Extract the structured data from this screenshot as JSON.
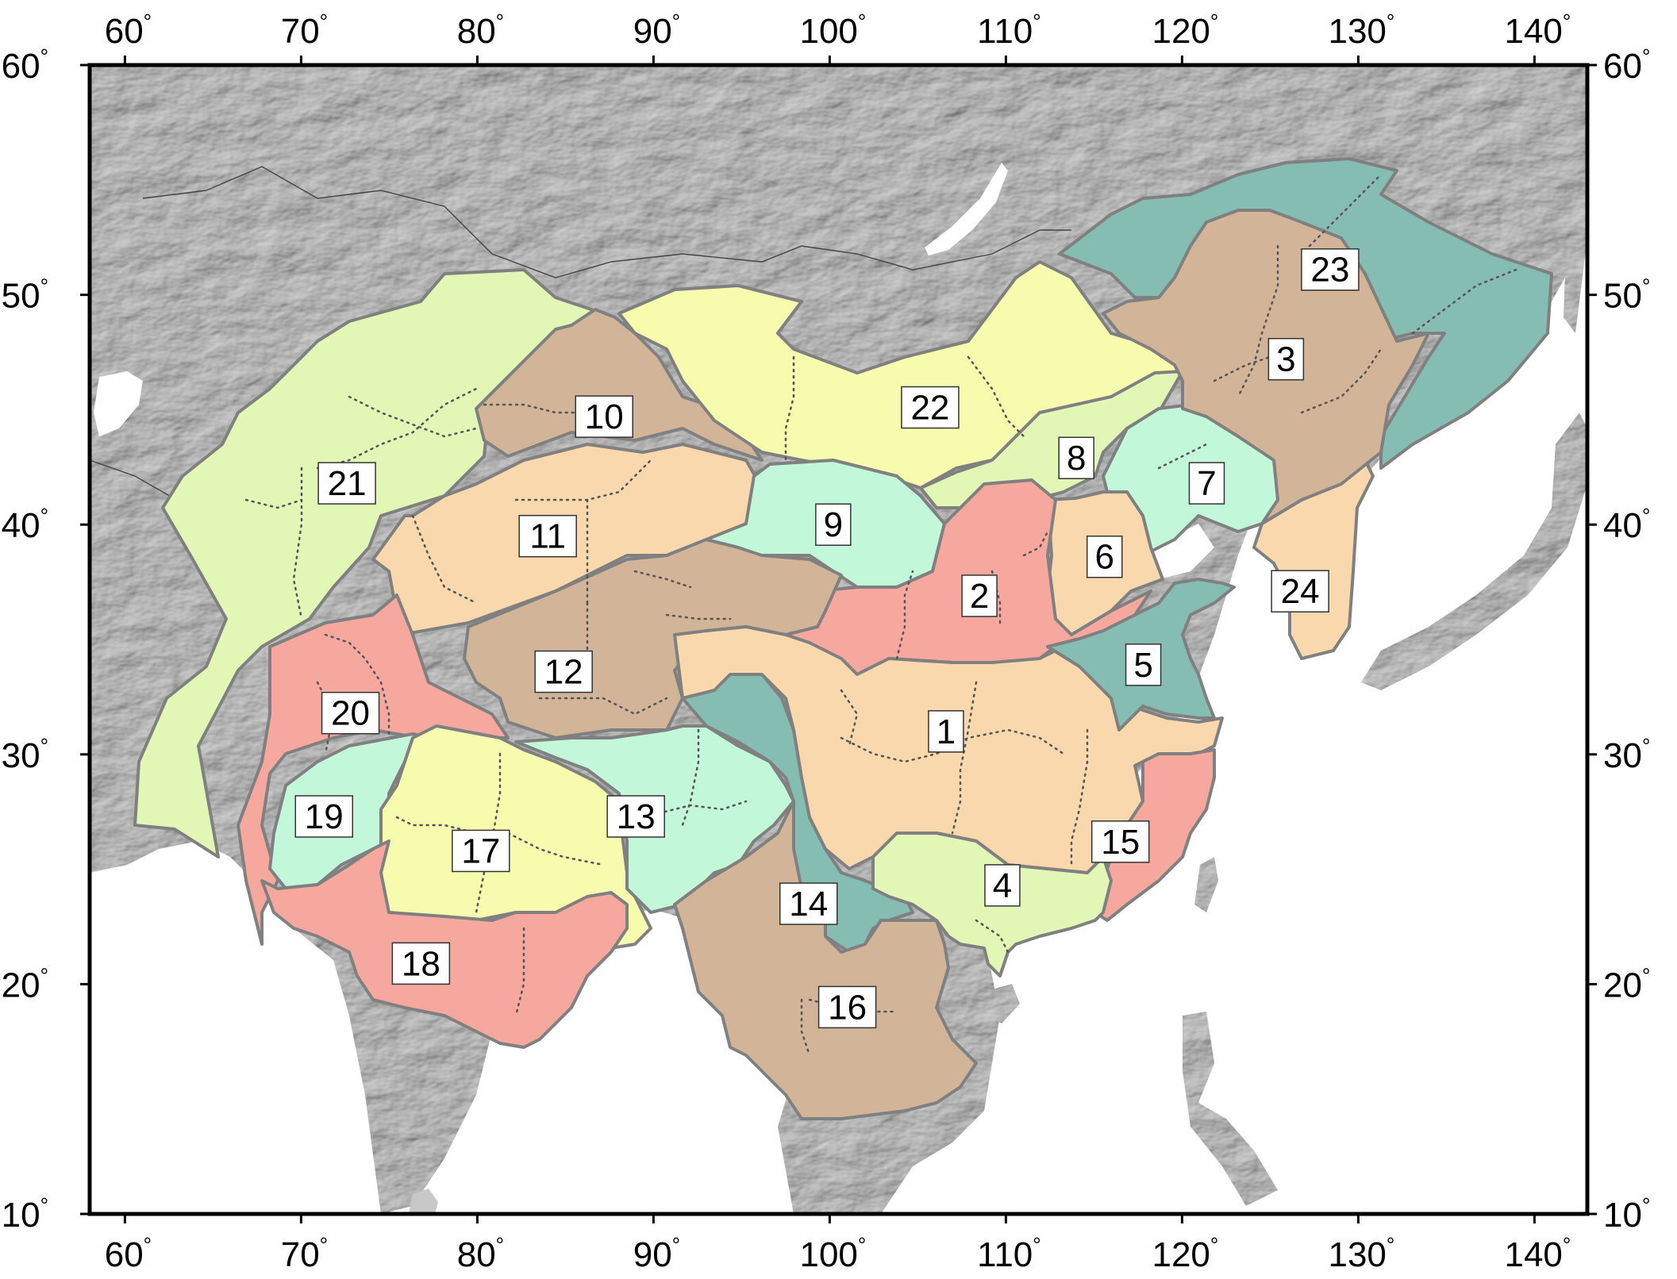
{
  "map": {
    "lon_range": [
      58,
      143
    ],
    "lat_range": [
      10,
      60
    ],
    "lon_ticks": [
      {
        "value": 60,
        "label": "60"
      },
      {
        "value": 70,
        "label": "70"
      },
      {
        "value": 80,
        "label": "80"
      },
      {
        "value": 90,
        "label": "90"
      },
      {
        "value": 100,
        "label": "100"
      },
      {
        "value": 110,
        "label": "110"
      },
      {
        "value": 120,
        "label": "120"
      },
      {
        "value": 130,
        "label": "130"
      },
      {
        "value": 140,
        "label": "140"
      }
    ],
    "lat_ticks": [
      {
        "value": 60,
        "label": "60"
      },
      {
        "value": 50,
        "label": "50"
      },
      {
        "value": 40,
        "label": "40"
      },
      {
        "value": 30,
        "label": "30"
      },
      {
        "value": 20,
        "label": "20"
      },
      {
        "value": 10,
        "label": "10"
      }
    ],
    "degree_symbol": "°",
    "colors": {
      "land": "#c8c8c8",
      "water": "#ffffff",
      "peach": "#f9d8ad",
      "salmon": "#f6a89e",
      "tan": "#d2b598",
      "teal": "#86bdb3",
      "mint": "#c2f7da",
      "lime": "#e2f7b6",
      "yellow": "#f6fbad"
    }
  },
  "regions": [
    {
      "id": "1",
      "label": "1",
      "color": "peach",
      "label_lon": 106.6,
      "label_lat": 31.0
    },
    {
      "id": "2",
      "label": "2",
      "color": "salmon",
      "label_lon": 108.5,
      "label_lat": 36.9
    },
    {
      "id": "3",
      "label": "3",
      "color": "tan",
      "label_lon": 125.9,
      "label_lat": 47.2
    },
    {
      "id": "4",
      "label": "4",
      "color": "lime",
      "label_lon": 109.8,
      "label_lat": 24.3
    },
    {
      "id": "5",
      "label": "5",
      "color": "teal",
      "label_lon": 117.8,
      "label_lat": 33.9
    },
    {
      "id": "6",
      "label": "6",
      "color": "peach",
      "label_lon": 115.6,
      "label_lat": 38.6
    },
    {
      "id": "7",
      "label": "7",
      "color": "mint",
      "label_lon": 121.4,
      "label_lat": 41.8
    },
    {
      "id": "8",
      "label": "8",
      "color": "lime",
      "label_lon": 114.0,
      "label_lat": 42.9
    },
    {
      "id": "9",
      "label": "9",
      "color": "mint",
      "label_lon": 100.2,
      "label_lat": 40.0
    },
    {
      "id": "10",
      "label": "10",
      "color": "tan",
      "label_lon": 87.2,
      "label_lat": 44.7
    },
    {
      "id": "11",
      "label": "11",
      "color": "peach",
      "label_lon": 84.0,
      "label_lat": 39.5
    },
    {
      "id": "12",
      "label": "12",
      "color": "tan",
      "label_lon": 84.9,
      "label_lat": 33.6
    },
    {
      "id": "13",
      "label": "13",
      "color": "mint",
      "label_lon": 89.0,
      "label_lat": 27.3
    },
    {
      "id": "14",
      "label": "14",
      "color": "teal",
      "label_lon": 98.8,
      "label_lat": 23.5
    },
    {
      "id": "15",
      "label": "15",
      "color": "salmon",
      "label_lon": 116.5,
      "label_lat": 26.2
    },
    {
      "id": "16",
      "label": "16",
      "color": "tan",
      "label_lon": 101.0,
      "label_lat": 19.0
    },
    {
      "id": "17",
      "label": "17",
      "color": "yellow",
      "label_lon": 80.2,
      "label_lat": 25.8
    },
    {
      "id": "18",
      "label": "18",
      "color": "salmon",
      "label_lon": 76.8,
      "label_lat": 20.9
    },
    {
      "id": "19",
      "label": "19",
      "color": "mint",
      "label_lon": 71.3,
      "label_lat": 27.3
    },
    {
      "id": "20",
      "label": "20",
      "color": "salmon",
      "label_lon": 72.8,
      "label_lat": 31.8
    },
    {
      "id": "21",
      "label": "21",
      "color": "lime",
      "label_lon": 72.6,
      "label_lat": 41.8
    },
    {
      "id": "22",
      "label": "22",
      "color": "yellow",
      "label_lon": 105.7,
      "label_lat": 45.1
    },
    {
      "id": "23",
      "label": "23",
      "color": "teal",
      "label_lon": 128.4,
      "label_lat": 51.1
    },
    {
      "id": "24",
      "label": "24",
      "color": "peach",
      "label_lon": 126.7,
      "label_lat": 37.1
    }
  ]
}
